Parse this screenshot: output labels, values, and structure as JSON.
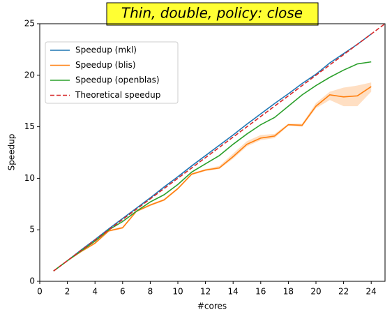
{
  "chart_data": {
    "type": "line",
    "title": "Thin, double, policy: close",
    "xlabel": "#cores",
    "ylabel": "Speedup",
    "xlim": [
      0,
      25
    ],
    "ylim": [
      0,
      25
    ],
    "xticks": [
      0,
      2,
      4,
      6,
      8,
      10,
      12,
      14,
      16,
      18,
      20,
      22,
      24
    ],
    "yticks": [
      0,
      5,
      10,
      15,
      20,
      25
    ],
    "legend": "upper left",
    "title_background": "#ffff33",
    "series": [
      {
        "name": "Speedup (mkl)",
        "color": "#1f77b4",
        "x": [
          1,
          2,
          3,
          4,
          5,
          6,
          7,
          8,
          9,
          10,
          11,
          12,
          13,
          14,
          15,
          16,
          17,
          18,
          19,
          20,
          21,
          22,
          23,
          24
        ],
        "values": [
          1,
          2,
          3.05,
          4.05,
          5.1,
          6.1,
          7.1,
          8.1,
          9.15,
          10.15,
          11.2,
          12.2,
          13.2,
          14.2,
          15.25,
          16.25,
          17.25,
          18.2,
          19.2,
          20.1,
          21.2,
          22.1,
          23,
          24
        ]
      },
      {
        "name": "Speedup (blis)",
        "color": "#ff7f0e",
        "x": [
          1,
          2,
          3,
          4,
          5,
          6,
          7,
          8,
          9,
          10,
          11,
          12,
          13,
          14,
          15,
          16,
          17,
          18,
          19,
          20,
          21,
          22,
          23,
          24
        ],
        "values": [
          1,
          2,
          2.9,
          3.7,
          4.9,
          5.2,
          6.8,
          7.4,
          7.9,
          9.0,
          10.4,
          10.8,
          11.0,
          12.1,
          13.3,
          13.9,
          14.1,
          15.2,
          15.15,
          17.0,
          18.1,
          17.9,
          18.0,
          18.9
        ],
        "band_lower": [
          1,
          2,
          2.8,
          3.6,
          4.8,
          5.1,
          6.7,
          7.3,
          7.8,
          8.9,
          10.3,
          10.7,
          10.9,
          11.9,
          13.1,
          13.7,
          13.9,
          15.1,
          15.0,
          16.8,
          17.6,
          17.0,
          17.0,
          18.4
        ],
        "band_upper": [
          1,
          2,
          3.0,
          3.8,
          5.0,
          5.3,
          6.9,
          7.5,
          8.0,
          9.1,
          10.5,
          10.9,
          11.2,
          12.4,
          13.6,
          14.2,
          14.3,
          15.3,
          15.3,
          17.3,
          18.4,
          18.8,
          19.0,
          19.3
        ]
      },
      {
        "name": "Speedup (openblas)",
        "color": "#2ca02c",
        "x": [
          1,
          2,
          3,
          4,
          5,
          6,
          7,
          8,
          9,
          10,
          11,
          12,
          13,
          14,
          15,
          16,
          17,
          18,
          19,
          20,
          21,
          22,
          23,
          24
        ],
        "values": [
          1,
          2,
          2.95,
          3.9,
          5.0,
          5.8,
          6.8,
          7.7,
          8.4,
          9.4,
          10.6,
          11.4,
          12.2,
          13.3,
          14.3,
          15.2,
          15.9,
          17.0,
          18.1,
          19.0,
          19.8,
          20.5,
          21.1,
          21.3
        ]
      },
      {
        "name": "Theoretical speedup",
        "color": "#d62728",
        "dashed": true,
        "x": [
          1,
          25
        ],
        "values": [
          1,
          25
        ]
      }
    ]
  }
}
